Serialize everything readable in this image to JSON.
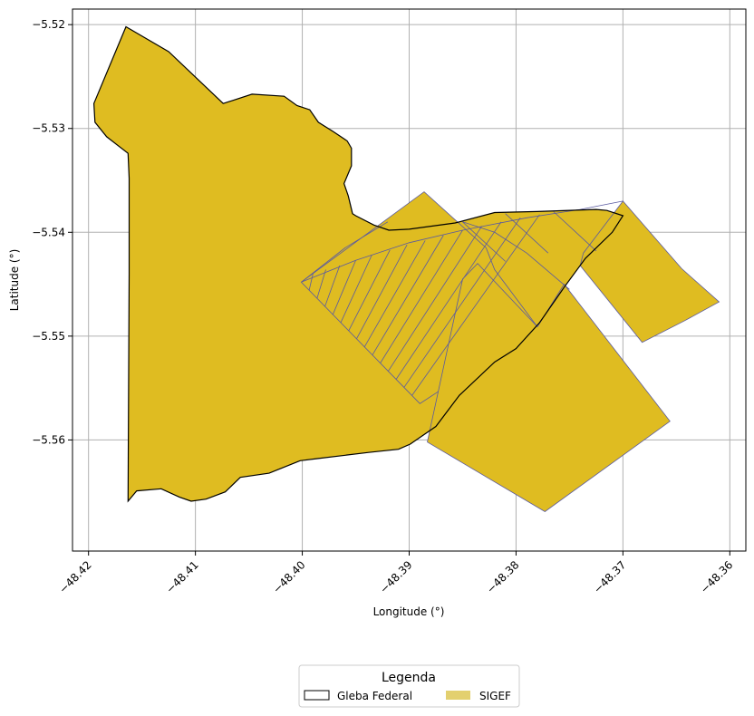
{
  "chart_data": {
    "type": "map",
    "xlabel": "Longitude (°)",
    "ylabel": "Latitude (°)",
    "xlim": [
      -48.4215,
      -48.3585
    ],
    "ylim": [
      -5.5707,
      -5.5185
    ],
    "x_ticks": [
      -48.42,
      -48.41,
      -48.4,
      -48.39,
      -48.38,
      -48.37,
      -48.36
    ],
    "x_tick_labels": [
      "−48.42",
      "−48.41",
      "−48.40",
      "−48.39",
      "−48.38",
      "−48.37",
      "−48.36"
    ],
    "y_ticks": [
      -5.52,
      -5.53,
      -5.54,
      -5.55,
      -5.56
    ],
    "y_tick_labels": [
      "−5.52",
      "−5.53",
      "−5.54",
      "−5.55",
      "−5.56"
    ],
    "grid": true,
    "legend": {
      "title": "Legenda",
      "placement": "bottom-center",
      "entries": [
        {
          "name": "Gleba Federal",
          "style": "outline",
          "color": "#000000"
        },
        {
          "name": "SIGEF",
          "style": "fill",
          "color": "#e3d06f"
        }
      ]
    },
    "colors": {
      "fill": "#dfbc21",
      "parcel_edge": "#5a5aa0",
      "gleba_edge": "#000000",
      "grid": "#b0b0b0"
    },
    "layers": {
      "gleba_federal": [
        [
          -48.4165,
          -5.5202
        ],
        [
          -48.4125,
          -5.5226
        ],
        [
          -48.4074,
          -5.5276
        ],
        [
          -48.4047,
          -5.5267
        ],
        [
          -48.4017,
          -5.5269
        ],
        [
          -48.4005,
          -5.5278
        ],
        [
          -48.3993,
          -5.5282
        ],
        [
          -48.3985,
          -5.5294
        ],
        [
          -48.3971,
          -5.5303
        ],
        [
          -48.3958,
          -5.5312
        ],
        [
          -48.3954,
          -5.5319
        ],
        [
          -48.3954,
          -5.5336
        ],
        [
          -48.3961,
          -5.5353
        ],
        [
          -48.3957,
          -5.5365
        ],
        [
          -48.3953,
          -5.5382
        ],
        [
          -48.395,
          -5.5384
        ],
        [
          -48.3933,
          -5.5393
        ],
        [
          -48.3919,
          -5.5398
        ],
        [
          -48.39,
          -5.5397
        ],
        [
          -48.3857,
          -5.5391
        ],
        [
          -48.382,
          -5.5381
        ],
        [
          -48.378,
          -5.538
        ],
        [
          -48.3725,
          -5.5378
        ],
        [
          -48.3715,
          -5.5379
        ],
        [
          -48.37,
          -5.5384
        ],
        [
          -48.371,
          -5.54
        ],
        [
          -48.3735,
          -5.5425
        ],
        [
          -48.3755,
          -5.5453
        ],
        [
          -48.3778,
          -5.5487
        ],
        [
          -48.38,
          -5.5512
        ],
        [
          -48.382,
          -5.5525
        ],
        [
          -48.3853,
          -5.5557
        ],
        [
          -48.3875,
          -5.5587
        ],
        [
          -48.3899,
          -5.5604
        ],
        [
          -48.391,
          -5.5609
        ],
        [
          -48.3938,
          -5.5612
        ],
        [
          -48.3986,
          -5.5618
        ],
        [
          -48.4002,
          -5.562
        ],
        [
          -48.4031,
          -5.5632
        ],
        [
          -48.4058,
          -5.5636
        ],
        [
          -48.4072,
          -5.565
        ],
        [
          -48.409,
          -5.5657
        ],
        [
          -48.4104,
          -5.5659
        ],
        [
          -48.4115,
          -5.5655
        ],
        [
          -48.4132,
          -5.5647
        ],
        [
          -48.4155,
          -5.5649
        ],
        [
          -48.4163,
          -5.5659
        ],
        [
          -48.4162,
          -5.544
        ],
        [
          -48.4162,
          -5.5348
        ],
        [
          -48.4163,
          -5.5324
        ],
        [
          -48.4183,
          -5.5308
        ],
        [
          -48.4194,
          -5.5294
        ],
        [
          -48.4195,
          -5.5276
        ]
      ],
      "sigef_parcels": [
        [
          [
            -48.4001,
            -5.5448
          ],
          [
            -48.3886,
            -5.5361
          ],
          [
            -48.3828,
            -5.5415
          ],
          [
            -48.382,
            -5.5436
          ],
          [
            -48.378,
            -5.5491
          ],
          [
            -48.389,
            -5.5565
          ]
        ],
        [
          [
            -48.385,
            -5.5445
          ],
          [
            -48.3836,
            -5.543
          ],
          [
            -48.378,
            -5.5491
          ],
          [
            -48.3755,
            -5.545
          ],
          [
            -48.3656,
            -5.5582
          ],
          [
            -48.3773,
            -5.5669
          ],
          [
            -48.3883,
            -5.5602
          ]
        ],
        [
          [
            -48.37,
            -5.537
          ],
          [
            -48.3737,
            -5.542
          ],
          [
            -48.374,
            -5.5432
          ],
          [
            -48.3682,
            -5.5506
          ],
          [
            -48.3642,
            -5.5485
          ],
          [
            -48.361,
            -5.5467
          ],
          [
            -48.3645,
            -5.5435
          ]
        ]
      ]
    }
  }
}
